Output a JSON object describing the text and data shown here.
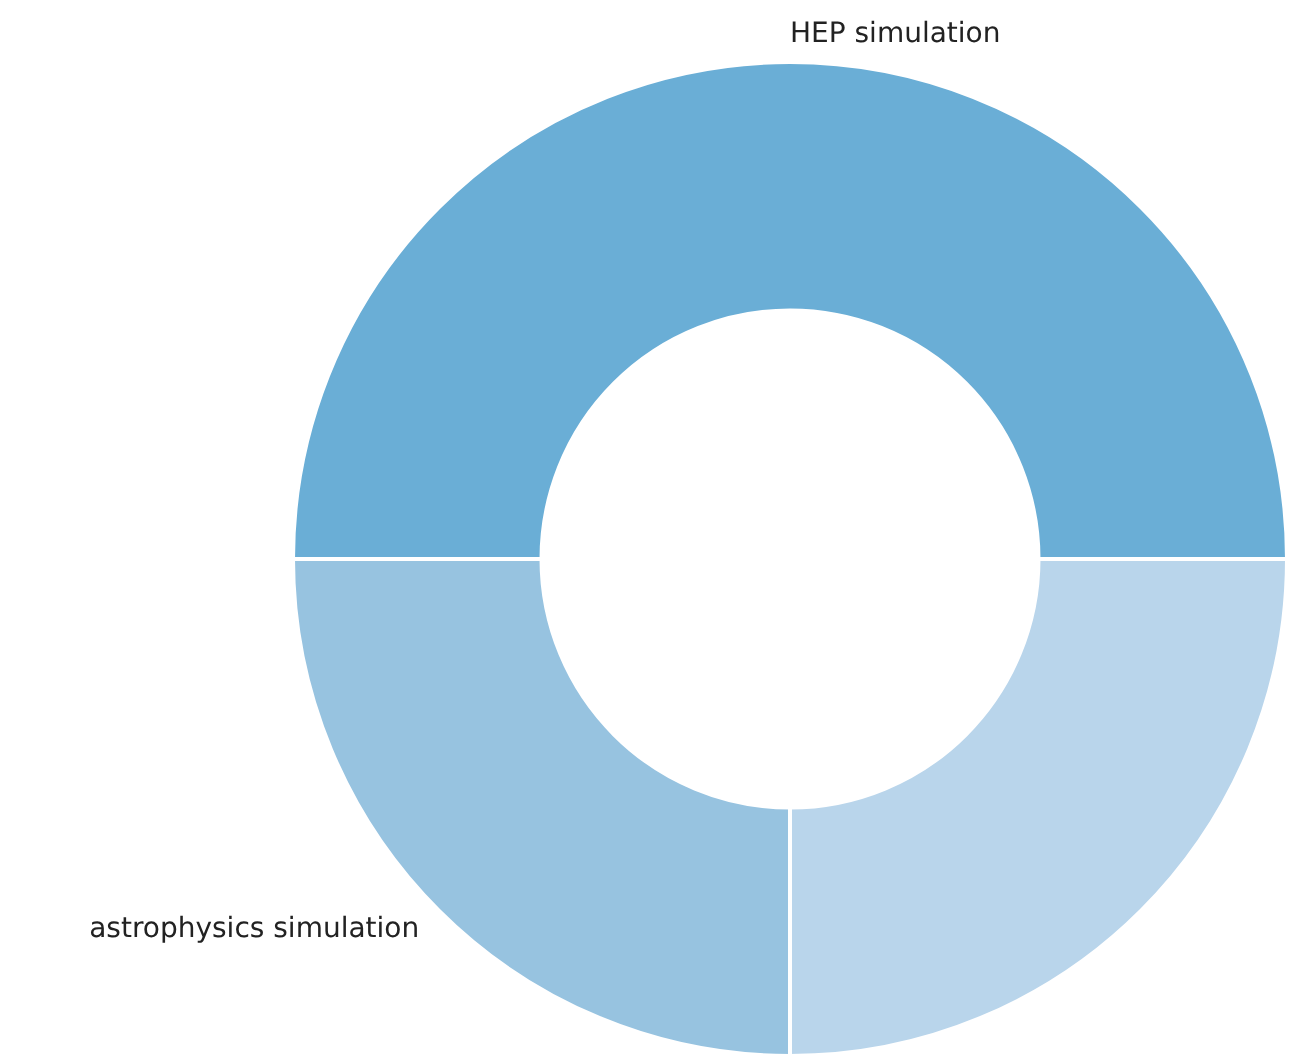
{
  "chart_data": {
    "type": "donut",
    "categories": [
      "HEP simulation",
      null,
      "astrophysics simulation"
    ],
    "values": [
      50,
      25,
      25
    ],
    "colors": [
      "#6aaed6",
      "#b9d5eb",
      "#97c3e0"
    ],
    "legend": false
  }
}
